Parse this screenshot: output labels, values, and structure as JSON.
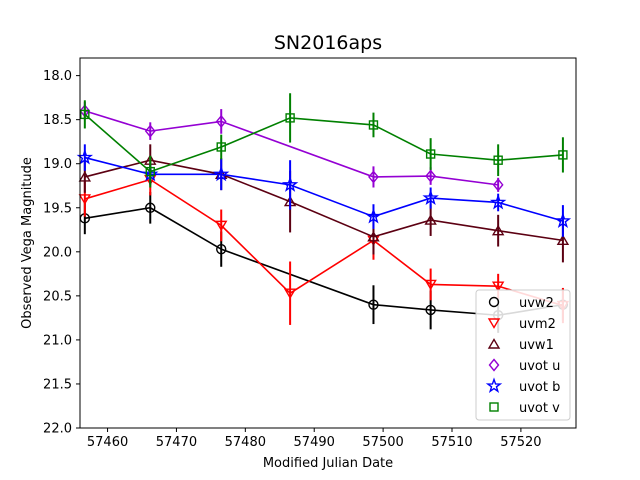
{
  "chart_data": {
    "type": "line",
    "title": "SN2016aps",
    "xlabel": "Modified Julian Date",
    "ylabel": "Observed Vega Magnitude",
    "xlim": [
      57456,
      57528
    ],
    "ylim": [
      22.0,
      17.8
    ],
    "y_inverted": true,
    "x_ticks": [
      57460,
      57470,
      57480,
      57490,
      57500,
      57510,
      57520
    ],
    "y_ticks": [
      18.0,
      18.5,
      19.0,
      19.5,
      20.0,
      20.5,
      21.0,
      21.5,
      22.0
    ],
    "grid": false,
    "legend_position": "lower-right",
    "series": [
      {
        "name": "uvw2",
        "color": "#000000",
        "marker": "circle",
        "x": [
          57456.7,
          57466.2,
          57476.5,
          57498.6,
          57506.9,
          57516.7,
          57526.1
        ],
        "y": [
          19.62,
          19.5,
          19.97,
          20.6,
          20.66,
          20.72,
          20.6
        ],
        "err": [
          0.18,
          0.18,
          0.2,
          0.22,
          0.22,
          0.2,
          0.18
        ]
      },
      {
        "name": "uvm2",
        "color": "#ff0000",
        "marker": "triangle-down",
        "x": [
          57456.7,
          57466.2,
          57476.5,
          57486.5,
          57498.6,
          57506.9,
          57516.7,
          57526.1
        ],
        "y": [
          19.4,
          19.18,
          19.7,
          20.47,
          19.87,
          20.37,
          20.39,
          20.61
        ],
        "err": [
          0.2,
          0.18,
          0.18,
          0.36,
          0.22,
          0.18,
          0.14,
          0.2
        ]
      },
      {
        "name": "uvw1",
        "color": "#5c0012",
        "marker": "triangle-up",
        "x": [
          57456.7,
          57466.2,
          57476.5,
          57486.5,
          57498.6,
          57506.9,
          57516.7,
          57526.1
        ],
        "y": [
          19.15,
          18.96,
          19.12,
          19.43,
          19.83,
          19.64,
          19.76,
          19.87
        ],
        "err": [
          0.18,
          0.18,
          0.18,
          0.35,
          0.2,
          0.18,
          0.18,
          0.25
        ]
      },
      {
        "name": "uvot u",
        "color": "#9400d3",
        "marker": "diamond",
        "x": [
          57456.7,
          57466.2,
          57476.5,
          57498.6,
          57506.9,
          57516.7
        ],
        "y": [
          18.4,
          18.63,
          18.52,
          19.15,
          19.14,
          19.24
        ],
        "err": [
          0.1,
          0.1,
          0.14,
          0.12,
          0.1,
          0.08
        ]
      },
      {
        "name": "uvot b",
        "color": "#0000ff",
        "marker": "star",
        "x": [
          57456.7,
          57466.2,
          57476.5,
          57486.5,
          57498.6,
          57506.9,
          57516.7,
          57526.1
        ],
        "y": [
          18.93,
          19.12,
          19.12,
          19.24,
          19.6,
          19.39,
          19.44,
          19.65
        ],
        "err": [
          0.15,
          0.12,
          0.18,
          0.28,
          0.14,
          0.12,
          0.1,
          0.18
        ]
      },
      {
        "name": "uvot v",
        "color": "#008000",
        "marker": "square",
        "x": [
          57456.7,
          57466.2,
          57476.5,
          57486.5,
          57498.6,
          57506.9,
          57516.7,
          57526.1
        ],
        "y": [
          18.44,
          19.09,
          18.81,
          18.48,
          18.56,
          18.89,
          18.96,
          18.9
        ],
        "err": [
          0.16,
          0.18,
          0.14,
          0.28,
          0.14,
          0.18,
          0.18,
          0.2
        ]
      }
    ]
  }
}
